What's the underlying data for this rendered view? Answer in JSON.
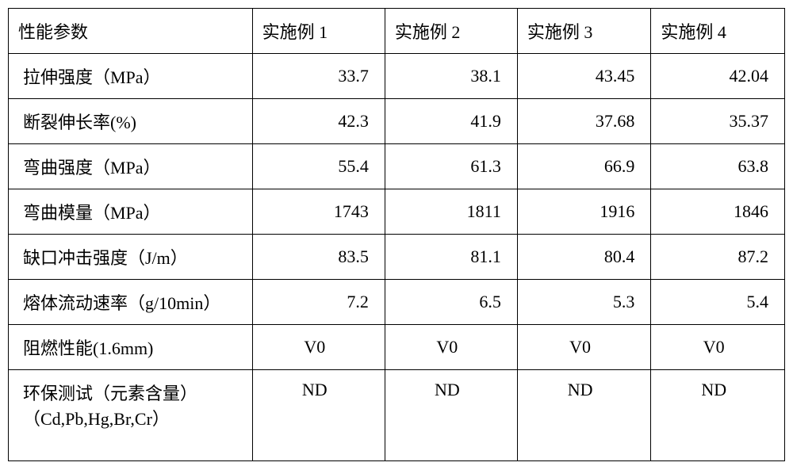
{
  "table": {
    "columns": [
      "性能参数",
      "实施例 1",
      "实施例 2",
      "实施例 3",
      "实施例 4"
    ],
    "rows": [
      {
        "param": "拉伸强度（MPa）",
        "vals": [
          "33.7",
          "38.1",
          "43.45",
          "42.04"
        ],
        "align": "right"
      },
      {
        "param": "断裂伸长率(%)",
        "vals": [
          "42.3",
          "41.9",
          "37.68",
          "35.37"
        ],
        "align": "right"
      },
      {
        "param": "弯曲强度（MPa）",
        "vals": [
          "55.4",
          "61.3",
          "66.9",
          "63.8"
        ],
        "align": "right"
      },
      {
        "param": "弯曲模量（MPa）",
        "vals": [
          "1743",
          "1811",
          "1916",
          "1846"
        ],
        "align": "right"
      },
      {
        "param": "缺口冲击强度（J/m）",
        "vals": [
          "83.5",
          "81.1",
          "80.4",
          "87.2"
        ],
        "align": "right"
      },
      {
        "param": "熔体流动速率（g/10min）",
        "vals": [
          "7.2",
          "6.5",
          "5.3",
          "5.4"
        ],
        "align": "right"
      },
      {
        "param": "阻燃性能(1.6mm)",
        "vals": [
          "V0",
          "V0",
          "V0",
          "V0"
        ],
        "align": "center"
      },
      {
        "param": "环保测试（元素含量）（Cd,Pb,Hg,Br,Cr）",
        "vals": [
          "ND",
          "ND",
          "ND",
          "ND"
        ],
        "align": "center-top",
        "multiline": true
      }
    ],
    "border_color": "#000000",
    "background_color": "#ffffff",
    "text_color": "#000000",
    "font_size_pt": 16
  }
}
